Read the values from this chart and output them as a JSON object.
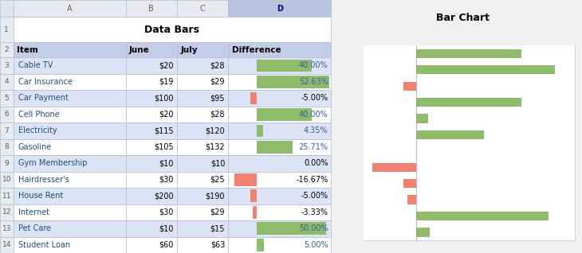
{
  "title_left": "Data Bars",
  "title_right": "Bar Chart",
  "col_headers": [
    "Item",
    "June",
    "July",
    "Difference"
  ],
  "rows": [
    [
      "Cable TV",
      "$20",
      "$28",
      "40.00%",
      40.0
    ],
    [
      "Car Insurance",
      "$19",
      "$29",
      "52.63%",
      52.63
    ],
    [
      "Car Payment",
      "$100",
      "$95",
      "-5.00%",
      -5.0
    ],
    [
      "Cell Phone",
      "$20",
      "$28",
      "40.00%",
      40.0
    ],
    [
      "Electricity",
      "$115",
      "$120",
      "4.35%",
      4.35
    ],
    [
      "Gasoline",
      "$105",
      "$132",
      "25.71%",
      25.71
    ],
    [
      "Gym Membership",
      "$10",
      "$10",
      "0.00%",
      0.0
    ],
    [
      "Hairdresser's",
      "$30",
      "$25",
      "-16.67%",
      -16.67
    ],
    [
      "House Rent",
      "$200",
      "$190",
      "-5.00%",
      -5.0
    ],
    [
      "Internet",
      "$30",
      "$29",
      "-3.33%",
      -3.33
    ],
    [
      "Pet Care",
      "$10",
      "$15",
      "50.00%",
      50.0
    ],
    [
      "Student Loan",
      "$60",
      "$63",
      "5.00%",
      5.0
    ]
  ],
  "green_bar": "#8fbc6b",
  "red_bar": "#f08070",
  "header_bg": "#c5cce8",
  "row_bg_odd": "#dce3f5",
  "row_bg_even": "#ffffff",
  "grid_color": "#b0bcd8",
  "item_color": "#1f4e79",
  "black": "#000000",
  "diff_pos_color": "#375a9e",
  "chart_border": "#c8cfe0",
  "excel_col_header_bg": "#e8eaf0",
  "excel_row_header_bg": "#e8eaf0",
  "excel_header_text": "#606060"
}
